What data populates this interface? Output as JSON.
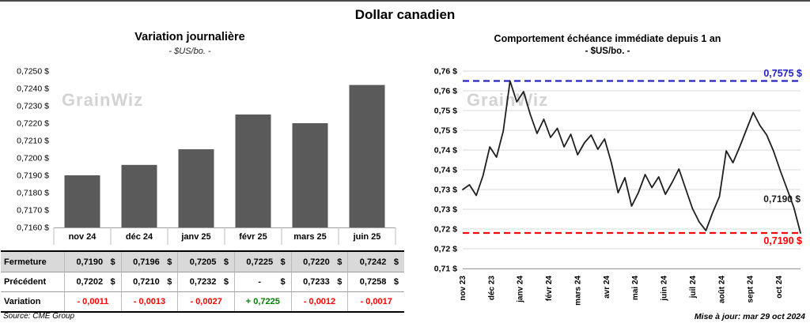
{
  "page": {
    "title": "Dollar canadien"
  },
  "left": {
    "title": "Variation journalière",
    "subtitle": "- $US/bo. -",
    "watermark": "GrainWiz",
    "source": "Source: CME Group",
    "table": {
      "currency": "$",
      "rows": [
        {
          "label": "Fermeture",
          "variant": "gray",
          "suffix": true,
          "values": [
            "0,7190",
            "0,7196",
            "0,7205",
            "0,7225",
            "0,7220",
            "0,7242"
          ]
        },
        {
          "label": "Précédent",
          "variant": "white",
          "suffix": true,
          "values": [
            "0,7202",
            "0,7210",
            "0,7232",
            "-",
            "0,7233",
            "0,7258"
          ]
        },
        {
          "label": "Variation",
          "variant": "white",
          "suffix": false,
          "values": [
            "- 0,0011",
            "- 0,0013",
            "- 0,0027",
            "+ 0,7225",
            "- 0,0012",
            "- 0,0017"
          ],
          "colors": [
            "#ff0000",
            "#ff0000",
            "#ff0000",
            "#008000",
            "#ff0000",
            "#ff0000"
          ]
        }
      ]
    }
  },
  "right": {
    "title": "Comportement échéance immédiate depuis 1 an",
    "subtitle": "- $US/bo. -",
    "watermark": "GrainWiz",
    "updated": "Mise à jour: mar 29 oct 2024"
  },
  "chart_data": [
    {
      "type": "bar",
      "title": "Variation journalière",
      "xlabel": "",
      "ylabel": "$US/bo.",
      "categories": [
        "nov 24",
        "déc 24",
        "janv 25",
        "févr 25",
        "mars 25",
        "juin 25"
      ],
      "values": [
        0.719,
        0.7196,
        0.7205,
        0.7225,
        0.722,
        0.7242
      ],
      "ylim": [
        0.716,
        0.725
      ],
      "ytick_step": 0.001,
      "ytick_labels": [
        "0,7250 $",
        "0,7240 $",
        "0,7230 $",
        "0,7220 $",
        "0,7210 $",
        "0,7200 $",
        "0,7190 $",
        "0,7180 $",
        "0,7170 $",
        "0,7160 $"
      ],
      "grid": false,
      "bar_color": "#5a5a5a"
    },
    {
      "type": "line",
      "title": "Comportement échéance immédiate depuis 1 an",
      "xlabel": "",
      "ylabel": "$US/bo.",
      "x_labels": [
        "nov 23",
        "déc 23",
        "janv 24",
        "févr 24",
        "mars 24",
        "avr 24",
        "mai 24",
        "juin 24",
        "juil 24",
        "août 24",
        "sept 24",
        "oct 24"
      ],
      "ylim": [
        0.71,
        0.76
      ],
      "ytick_step": 0.005,
      "ytick_labels": [
        "0,76 $",
        "0,76 $",
        "0,75 $",
        "0,75 $",
        "0,74 $",
        "0,74 $",
        "0,73 $",
        "0,73 $",
        "0,72 $",
        "0,72 $",
        "0,71 $"
      ],
      "grid": true,
      "grid_color": "#d9d9d9",
      "line_color": "#1f1f1f",
      "series": [
        {
          "name": "échéance immédiate",
          "values": [
            0.73,
            0.7312,
            0.7285,
            0.7335,
            0.7408,
            0.7382,
            0.7448,
            0.7575,
            0.7522,
            0.7548,
            0.749,
            0.7442,
            0.7478,
            0.7432,
            0.7455,
            0.7408,
            0.744,
            0.7388,
            0.7418,
            0.7438,
            0.7402,
            0.7428,
            0.7368,
            0.7292,
            0.733,
            0.7258,
            0.7292,
            0.7338,
            0.7305,
            0.7332,
            0.7288,
            0.7318,
            0.7352,
            0.7302,
            0.7252,
            0.7218,
            0.7196,
            0.7242,
            0.7282,
            0.7398,
            0.7368,
            0.7408,
            0.7452,
            0.7495,
            0.7462,
            0.7438,
            0.7398,
            0.7348,
            0.7302,
            0.7255,
            0.719
          ]
        }
      ],
      "ref_lines": [
        {
          "value": 0.7575,
          "label": "0,7575 $",
          "color": "#2626bf",
          "style": "dashed"
        },
        {
          "value": 0.719,
          "label": "0,7190 $",
          "color": "#ff0000",
          "style": "dashed"
        }
      ],
      "last_label": {
        "text": "0,7190 $",
        "value": 0.719,
        "color": "#1a1a1a"
      }
    }
  ]
}
